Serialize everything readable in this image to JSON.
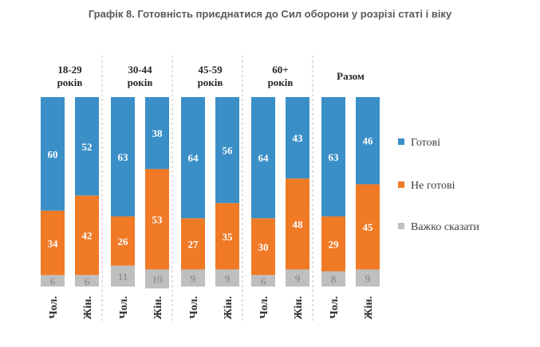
{
  "chart_data": {
    "type": "bar",
    "stacked": true,
    "title": "Графік 8. Готовність приєднатися до Сил оборони у розрізі статі і віку",
    "groups": [
      {
        "label_lines": [
          "18-29",
          "років"
        ],
        "bars": [
          {
            "gender": "Чол.",
            "values": [
              60,
              34,
              6
            ]
          },
          {
            "gender": "Жін.",
            "values": [
              52,
              42,
              6
            ]
          }
        ]
      },
      {
        "label_lines": [
          "30-44",
          "років"
        ],
        "bars": [
          {
            "gender": "Чол.",
            "values": [
              63,
              26,
              11
            ]
          },
          {
            "gender": "Жін.",
            "values": [
              38,
              53,
              10
            ]
          }
        ]
      },
      {
        "label_lines": [
          "45-59",
          "років"
        ],
        "bars": [
          {
            "gender": "Чол.",
            "values": [
              64,
              27,
              9
            ]
          },
          {
            "gender": "Жін.",
            "values": [
              56,
              35,
              9
            ]
          }
        ]
      },
      {
        "label_lines": [
          "60+",
          "років"
        ],
        "bars": [
          {
            "gender": "Чол.",
            "values": [
              64,
              30,
              6
            ]
          },
          {
            "gender": "Жін.",
            "values": [
              43,
              48,
              9
            ]
          }
        ]
      },
      {
        "label_lines": [
          "Разом"
        ],
        "bars": [
          {
            "gender": "Чол.",
            "values": [
              63,
              29,
              8
            ]
          },
          {
            "gender": "Жін.",
            "values": [
              46,
              45,
              9
            ]
          }
        ]
      }
    ],
    "series": [
      {
        "name": "Готові",
        "color": "#3a8fc7"
      },
      {
        "name": "Не готові",
        "color": "#f07a26"
      },
      {
        "name": "Важко сказати",
        "color": "#bfbfbf"
      }
    ],
    "legend_position": "right",
    "value_range": [
      0,
      100
    ]
  }
}
